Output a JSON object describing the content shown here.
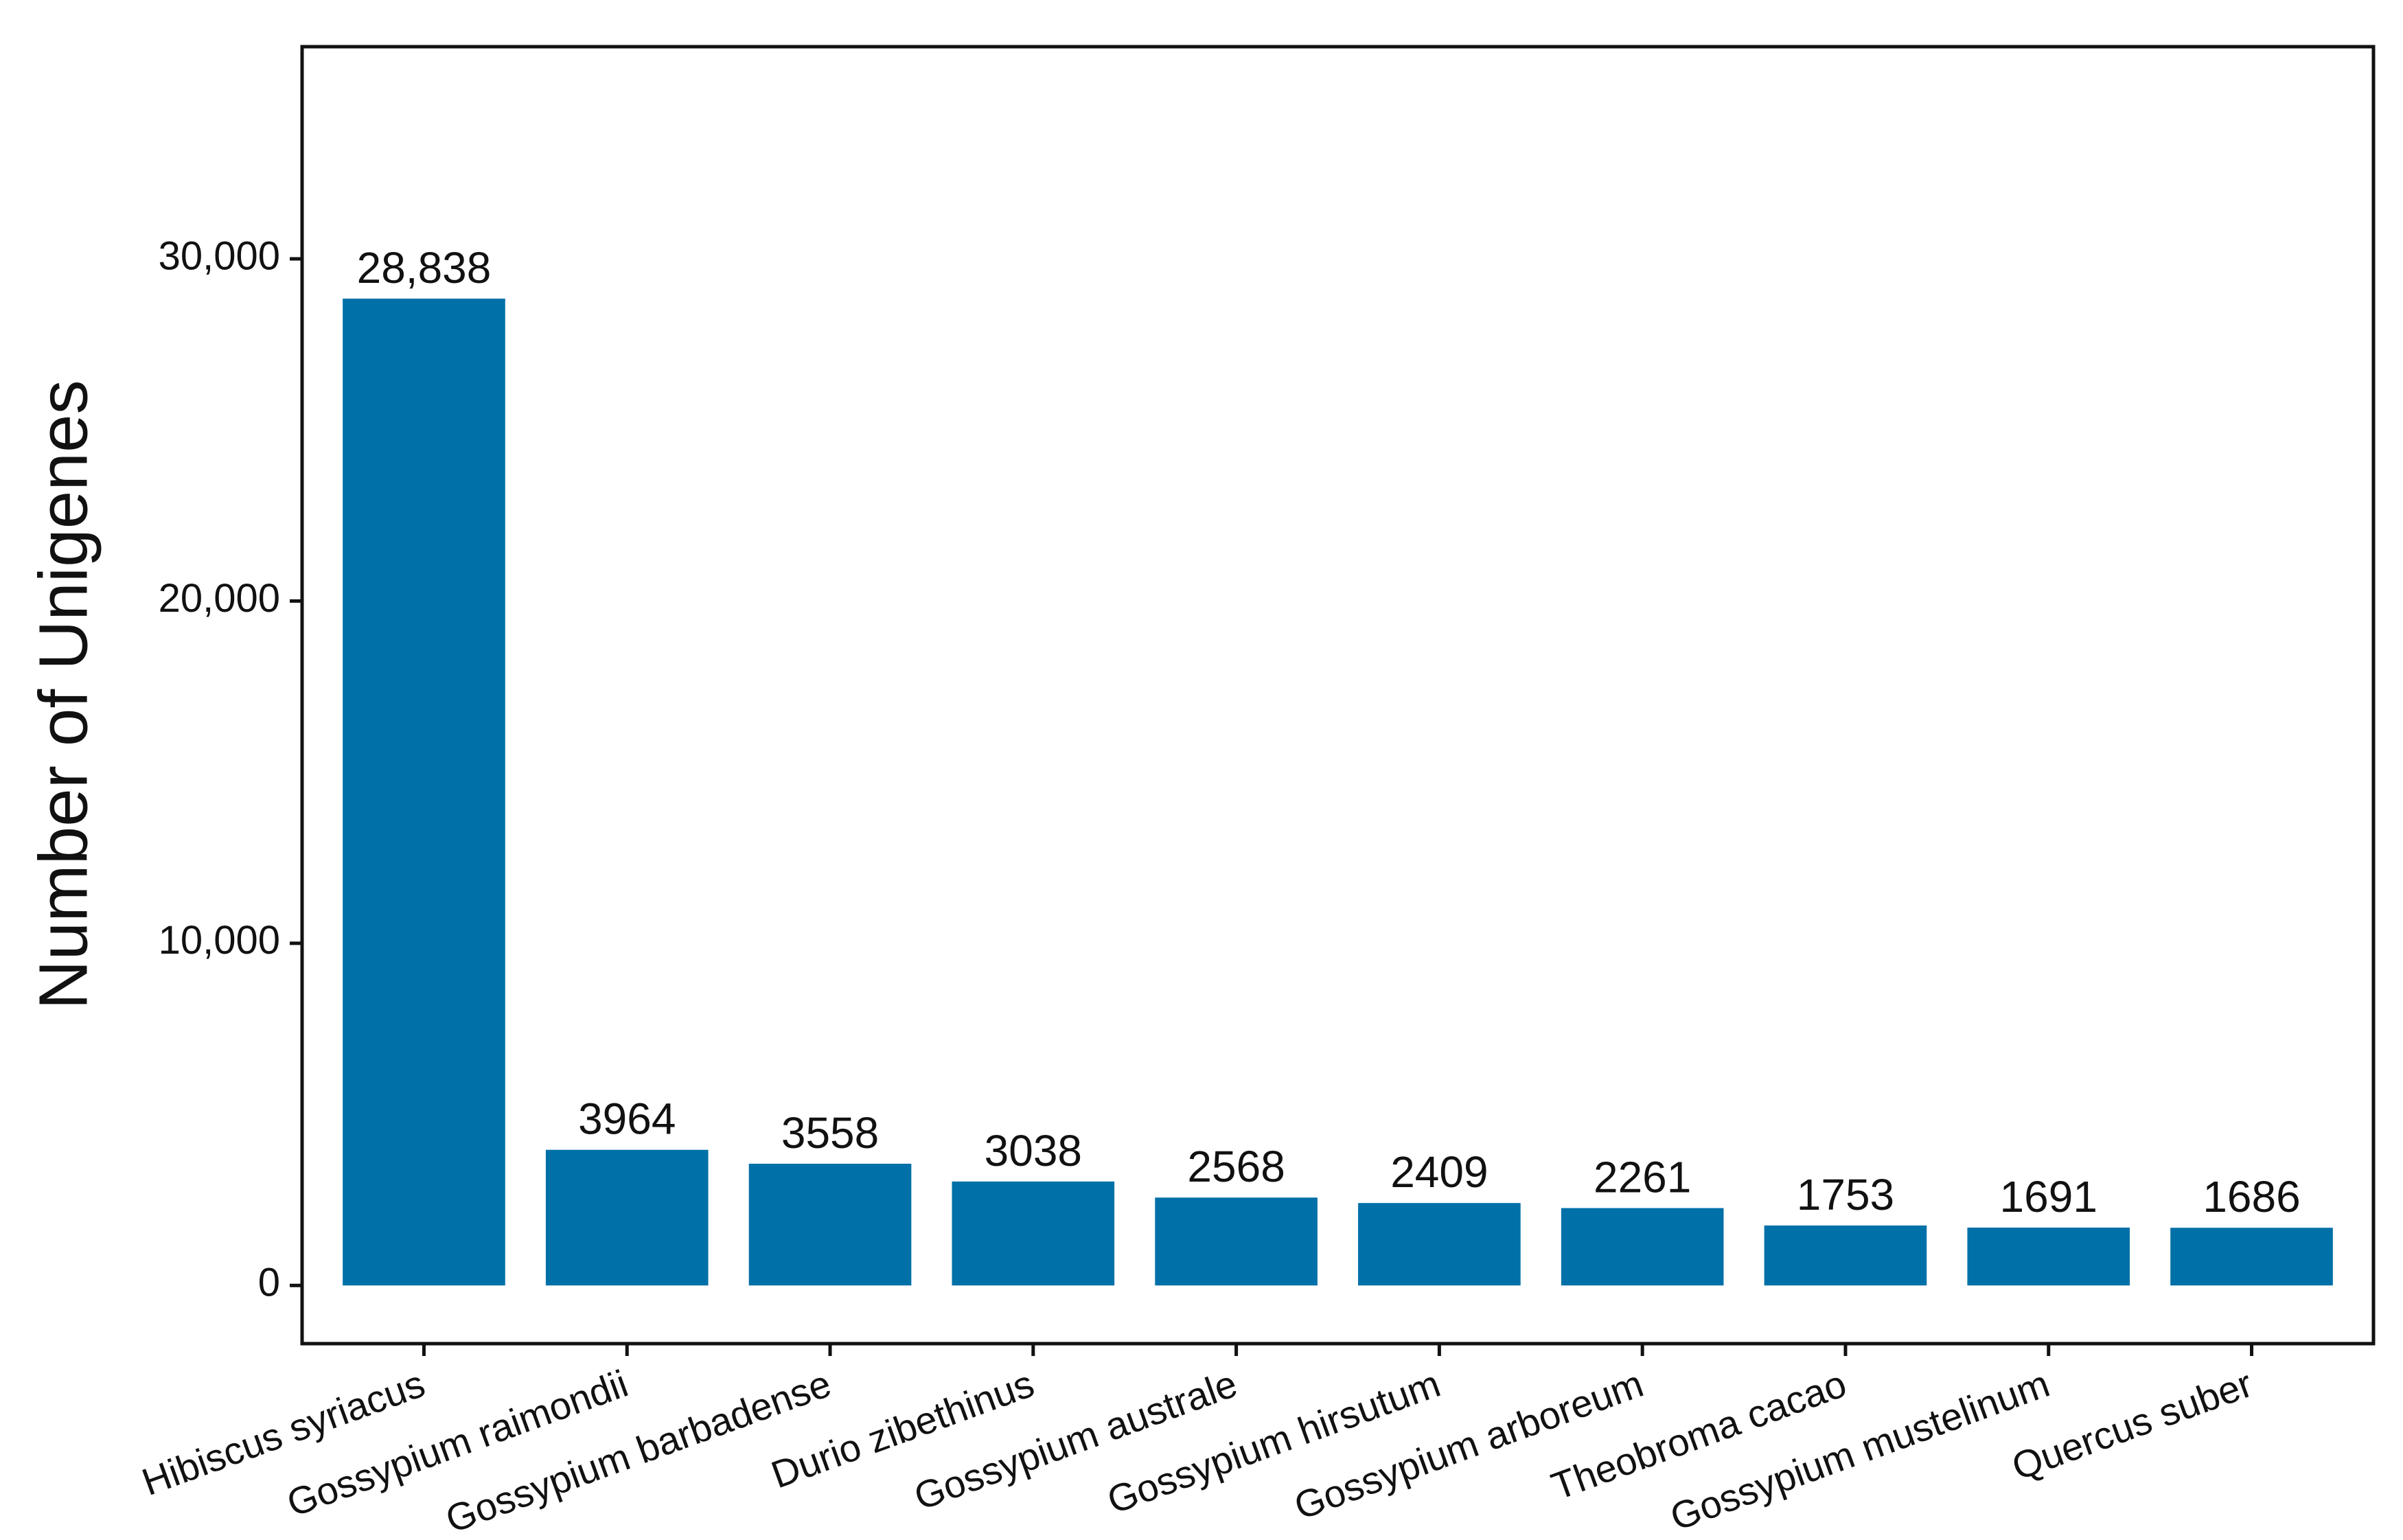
{
  "chart_data": {
    "type": "bar",
    "y_label": "Number of Unigenes",
    "categories": [
      "Hibiscus syriacus",
      "Gossypium raimondii",
      "Gossypium barbadense",
      "Durio zibethinus",
      "Gossypium australe",
      "Gossypium hirsutum",
      "Gossypium arboreum",
      "Theobroma cacao",
      "Gossypium mustelinum",
      "Quercus suber"
    ],
    "values": [
      28838,
      3964,
      3558,
      3038,
      2568,
      2409,
      2261,
      1753,
      1691,
      1686
    ],
    "value_labels": [
      "28,838",
      "3964",
      "3558",
      "3038",
      "2568",
      "2409",
      "2261",
      "1753",
      "1691",
      "1686"
    ],
    "color": "#0070a8",
    "ylim": [
      -1700,
      36200
    ],
    "yticks": [
      0,
      {
        "value": 10000,
        "label": "10,000"
      },
      {
        "value": 20000,
        "label": "20,000"
      },
      {
        "value": 30000,
        "label": "30,000"
      }
    ]
  }
}
